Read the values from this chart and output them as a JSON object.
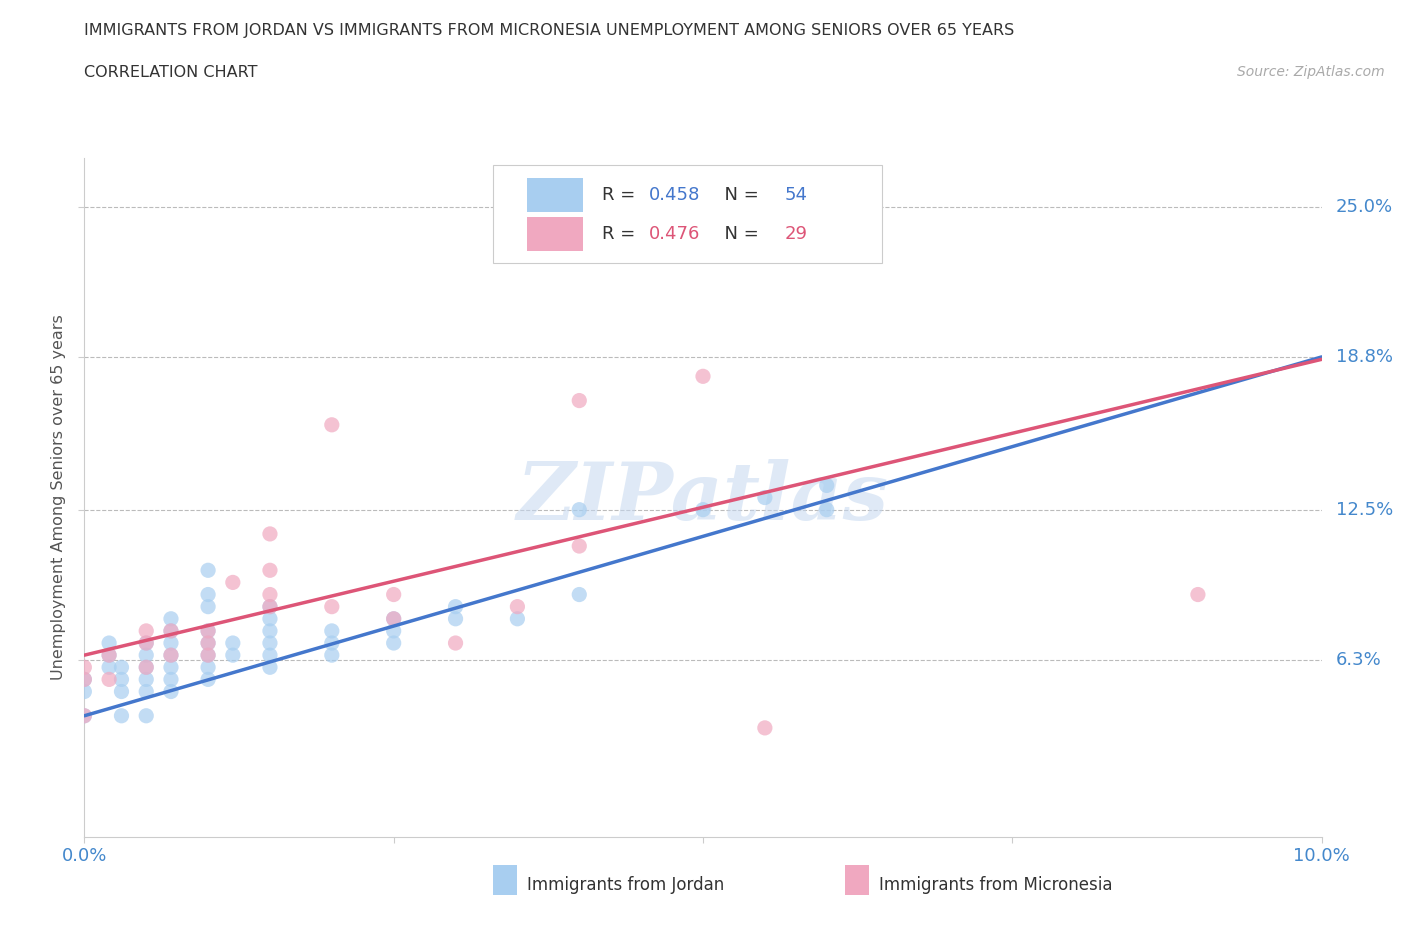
{
  "title_line1": "IMMIGRANTS FROM JORDAN VS IMMIGRANTS FROM MICRONESIA UNEMPLOYMENT AMONG SENIORS OVER 65 YEARS",
  "title_line2": "CORRELATION CHART",
  "source": "Source: ZipAtlas.com",
  "ylabel": "Unemployment Among Seniors over 65 years",
  "xlim": [
    0.0,
    0.1
  ],
  "ylim": [
    -0.01,
    0.27
  ],
  "ytick_labels_right": [
    "6.3%",
    "12.5%",
    "18.8%",
    "25.0%"
  ],
  "ytick_values_right": [
    0.063,
    0.125,
    0.188,
    0.25
  ],
  "jordan_color": "#a8cef0",
  "micronesia_color": "#f0a8c0",
  "jordan_R": 0.458,
  "jordan_N": 54,
  "micronesia_R": 0.476,
  "micronesia_N": 29,
  "jordan_line_color": "#4477cc",
  "micronesia_line_color": "#dd5577",
  "watermark": "ZIPatlas",
  "legend_jordan": "Immigrants from Jordan",
  "legend_micronesia": "Immigrants from Micronesia",
  "jordan_scatter": [
    [
      0.0,
      0.04
    ],
    [
      0.0,
      0.05
    ],
    [
      0.0,
      0.055
    ],
    [
      0.002,
      0.06
    ],
    [
      0.002,
      0.065
    ],
    [
      0.002,
      0.07
    ],
    [
      0.003,
      0.04
    ],
    [
      0.003,
      0.05
    ],
    [
      0.003,
      0.055
    ],
    [
      0.003,
      0.06
    ],
    [
      0.005,
      0.04
    ],
    [
      0.005,
      0.05
    ],
    [
      0.005,
      0.055
    ],
    [
      0.005,
      0.06
    ],
    [
      0.005,
      0.065
    ],
    [
      0.005,
      0.07
    ],
    [
      0.007,
      0.05
    ],
    [
      0.007,
      0.055
    ],
    [
      0.007,
      0.06
    ],
    [
      0.007,
      0.065
    ],
    [
      0.007,
      0.07
    ],
    [
      0.007,
      0.075
    ],
    [
      0.007,
      0.08
    ],
    [
      0.01,
      0.055
    ],
    [
      0.01,
      0.06
    ],
    [
      0.01,
      0.065
    ],
    [
      0.01,
      0.07
    ],
    [
      0.01,
      0.075
    ],
    [
      0.01,
      0.085
    ],
    [
      0.01,
      0.09
    ],
    [
      0.01,
      0.1
    ],
    [
      0.012,
      0.065
    ],
    [
      0.012,
      0.07
    ],
    [
      0.015,
      0.06
    ],
    [
      0.015,
      0.065
    ],
    [
      0.015,
      0.07
    ],
    [
      0.015,
      0.075
    ],
    [
      0.015,
      0.08
    ],
    [
      0.015,
      0.085
    ],
    [
      0.02,
      0.065
    ],
    [
      0.02,
      0.07
    ],
    [
      0.02,
      0.075
    ],
    [
      0.025,
      0.07
    ],
    [
      0.025,
      0.075
    ],
    [
      0.025,
      0.08
    ],
    [
      0.03,
      0.08
    ],
    [
      0.03,
      0.085
    ],
    [
      0.035,
      0.08
    ],
    [
      0.04,
      0.09
    ],
    [
      0.04,
      0.125
    ],
    [
      0.05,
      0.125
    ],
    [
      0.055,
      0.13
    ],
    [
      0.06,
      0.125
    ],
    [
      0.06,
      0.135
    ]
  ],
  "micronesia_scatter": [
    [
      0.0,
      0.04
    ],
    [
      0.0,
      0.055
    ],
    [
      0.0,
      0.06
    ],
    [
      0.002,
      0.055
    ],
    [
      0.002,
      0.065
    ],
    [
      0.005,
      0.06
    ],
    [
      0.005,
      0.07
    ],
    [
      0.005,
      0.075
    ],
    [
      0.007,
      0.065
    ],
    [
      0.007,
      0.075
    ],
    [
      0.01,
      0.065
    ],
    [
      0.01,
      0.07
    ],
    [
      0.01,
      0.075
    ],
    [
      0.012,
      0.095
    ],
    [
      0.015,
      0.085
    ],
    [
      0.015,
      0.09
    ],
    [
      0.015,
      0.1
    ],
    [
      0.015,
      0.115
    ],
    [
      0.02,
      0.085
    ],
    [
      0.02,
      0.16
    ],
    [
      0.025,
      0.08
    ],
    [
      0.025,
      0.09
    ],
    [
      0.03,
      0.07
    ],
    [
      0.035,
      0.085
    ],
    [
      0.04,
      0.11
    ],
    [
      0.04,
      0.17
    ],
    [
      0.05,
      0.18
    ],
    [
      0.055,
      0.035
    ],
    [
      0.09,
      0.09
    ]
  ]
}
